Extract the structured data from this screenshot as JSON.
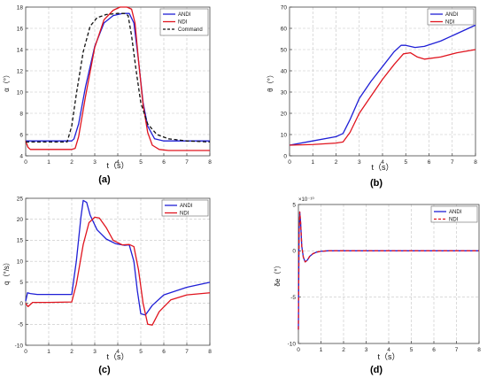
{
  "figure": {
    "background": "#ffffff"
  },
  "colors": {
    "andi": "#1f1fd6",
    "ndi": "#e0141e",
    "command": "#111111",
    "grid": "#c4c4c4",
    "axis": "#444444"
  },
  "chart_data": [
    {
      "id": "a",
      "type": "line",
      "caption": "(a)",
      "xlabel": "t（s）",
      "ylabel": "α（°）",
      "xlim": [
        0,
        8
      ],
      "ylim": [
        4,
        18
      ],
      "xticks": [
        0,
        1,
        2,
        3,
        4,
        5,
        6,
        7,
        8
      ],
      "yticks": [
        4,
        6,
        8,
        10,
        12,
        14,
        16,
        18
      ],
      "grid": true,
      "legend": "top-right",
      "series": [
        {
          "name": "ANDI",
          "color": "#1f1fd6",
          "dash": "solid",
          "x": [
            0,
            2.0,
            2.1,
            2.3,
            2.6,
            3.0,
            3.4,
            3.8,
            4.2,
            4.5,
            4.7,
            4.9,
            5.1,
            5.3,
            5.6,
            6.0,
            8.0
          ],
          "y": [
            5.4,
            5.4,
            5.6,
            7.0,
            10.5,
            14.3,
            16.5,
            17.2,
            17.4,
            17.4,
            16.5,
            13.0,
            9.0,
            6.8,
            5.6,
            5.4,
            5.4
          ]
        },
        {
          "name": "NDI",
          "color": "#e0141e",
          "dash": "solid",
          "x": [
            0,
            0.1,
            0.2,
            2.0,
            2.15,
            2.3,
            2.6,
            3.0,
            3.4,
            3.8,
            4.1,
            4.4,
            4.6,
            4.75,
            4.9,
            5.1,
            5.3,
            5.5,
            5.8,
            6.2,
            8.0
          ],
          "y": [
            5.4,
            4.8,
            4.6,
            4.6,
            4.7,
            5.8,
            9.6,
            14.2,
            16.8,
            17.7,
            18.0,
            18.0,
            17.8,
            16.5,
            13.0,
            8.8,
            6.2,
            5.0,
            4.6,
            4.5,
            4.5
          ]
        },
        {
          "name": "Command",
          "color": "#111111",
          "dash": "dashed",
          "x": [
            0,
            1.8,
            2.0,
            2.2,
            2.5,
            2.8,
            3.1,
            3.5,
            4.0,
            4.3,
            4.45,
            4.6,
            4.8,
            5.0,
            5.3,
            5.7,
            6.2,
            7.0,
            8.0
          ],
          "y": [
            5.3,
            5.3,
            6.8,
            9.8,
            13.8,
            16.2,
            17.0,
            17.3,
            17.4,
            17.4,
            17.2,
            15.3,
            12.0,
            9.0,
            7.0,
            6.0,
            5.6,
            5.4,
            5.3
          ]
        }
      ]
    },
    {
      "id": "b",
      "type": "line",
      "caption": "(b)",
      "xlabel": "t（s）",
      "ylabel": "θ（°）",
      "xlim": [
        0,
        8
      ],
      "ylim": [
        0,
        70
      ],
      "xticks": [
        0,
        1,
        2,
        3,
        4,
        5,
        6,
        7,
        8
      ],
      "yticks": [
        0,
        10,
        20,
        30,
        40,
        50,
        60,
        70
      ],
      "grid": true,
      "legend": "top-right",
      "series": [
        {
          "name": "ANDI",
          "color": "#1f1fd6",
          "dash": "solid",
          "x": [
            0,
            1.0,
            2.0,
            2.3,
            2.6,
            3.0,
            3.5,
            4.0,
            4.5,
            4.8,
            5.0,
            5.4,
            5.8,
            6.5,
            7.2,
            8.0
          ],
          "y": [
            5,
            7,
            9,
            10.5,
            17,
            27,
            35,
            42,
            49,
            52,
            52,
            51,
            51.5,
            54,
            57.5,
            61.5
          ]
        },
        {
          "name": "NDI",
          "color": "#e0141e",
          "dash": "solid",
          "x": [
            0,
            1.0,
            2.0,
            2.3,
            2.6,
            3.0,
            3.5,
            4.0,
            4.5,
            4.9,
            5.2,
            5.5,
            5.8,
            6.5,
            7.2,
            8.0
          ],
          "y": [
            5,
            5.3,
            6,
            6.5,
            11,
            20,
            28,
            36,
            43,
            48,
            48.5,
            46.5,
            45.5,
            46.5,
            48.5,
            50
          ]
        }
      ]
    },
    {
      "id": "c",
      "type": "line",
      "caption": "(c)",
      "xlabel": "t（s）",
      "ylabel": "q（°/s）",
      "xlim": [
        0,
        8
      ],
      "ylim": [
        -10,
        25
      ],
      "xticks": [
        0,
        1,
        2,
        3,
        4,
        5,
        6,
        7,
        8
      ],
      "yticks": [
        -10,
        -5,
        0,
        5,
        10,
        15,
        20,
        25
      ],
      "grid": true,
      "legend": "top-right",
      "series": [
        {
          "name": "ANDI",
          "color": "#1f1fd6",
          "dash": "solid",
          "x": [
            0,
            0.08,
            0.2,
            0.5,
            2.0,
            2.2,
            2.4,
            2.5,
            2.65,
            2.8,
            3.1,
            3.5,
            3.9,
            4.3,
            4.5,
            4.7,
            4.85,
            5.0,
            5.2,
            5.5,
            6.0,
            7.0,
            8.0
          ],
          "y": [
            0.5,
            2.5,
            2.3,
            2.1,
            2.1,
            10.0,
            20.5,
            24.5,
            24.0,
            21.0,
            17.5,
            15.3,
            14.2,
            13.8,
            13.9,
            10.0,
            3.0,
            -2.5,
            -2.8,
            -0.5,
            2.0,
            3.8,
            5.0
          ]
        },
        {
          "name": "NDI",
          "color": "#e0141e",
          "dash": "solid",
          "x": [
            0,
            0.1,
            0.3,
            0.6,
            1.0,
            2.0,
            2.2,
            2.5,
            2.75,
            3.0,
            3.2,
            3.5,
            3.8,
            4.2,
            4.5,
            4.7,
            4.9,
            5.1,
            5.3,
            5.5,
            5.8,
            6.3,
            7.0,
            8.0
          ],
          "y": [
            0,
            -0.8,
            0.2,
            0.2,
            0.2,
            0.3,
            4.5,
            14.0,
            19.2,
            20.5,
            20.3,
            18.0,
            15.0,
            13.9,
            14.0,
            13.5,
            8.0,
            0.0,
            -5.0,
            -5.2,
            -2.0,
            0.8,
            2.0,
            2.5
          ]
        }
      ]
    },
    {
      "id": "d",
      "type": "line",
      "caption": "(d)",
      "xlabel": "t（s）",
      "ylabel": "δe（°）",
      "exponent": "×10⁻¹⁰",
      "xlim": [
        0,
        8
      ],
      "ylim": [
        -10,
        5
      ],
      "xticks": [
        0,
        1,
        2,
        3,
        4,
        5,
        6,
        7,
        8
      ],
      "yticks": [
        -10,
        -5,
        0,
        5
      ],
      "grid": true,
      "legend": "top-right",
      "series": [
        {
          "name": "ANDI",
          "color": "#1f1fd6",
          "dash": "solid",
          "x": [
            0,
            0.03,
            0.06,
            0.1,
            0.15,
            0.22,
            0.3,
            0.4,
            0.5,
            0.65,
            0.8,
            1.0,
            1.3,
            2.0,
            8.0
          ],
          "y": [
            -8.5,
            2.0,
            4.2,
            3.0,
            0.5,
            -0.7,
            -1.2,
            -1.0,
            -0.6,
            -0.3,
            -0.15,
            -0.05,
            0,
            0,
            0
          ]
        },
        {
          "name": "NDI",
          "color": "#e0141e",
          "dash": "dashed",
          "x": [
            0,
            0.03,
            0.06,
            0.1,
            0.15,
            0.22,
            0.3,
            0.4,
            0.5,
            0.65,
            0.8,
            1.0,
            1.3,
            2.0,
            8.0
          ],
          "y": [
            -8.5,
            2.0,
            4.2,
            3.0,
            0.5,
            -0.7,
            -1.2,
            -1.0,
            -0.6,
            -0.3,
            -0.15,
            -0.05,
            0,
            0,
            0
          ]
        }
      ]
    }
  ]
}
